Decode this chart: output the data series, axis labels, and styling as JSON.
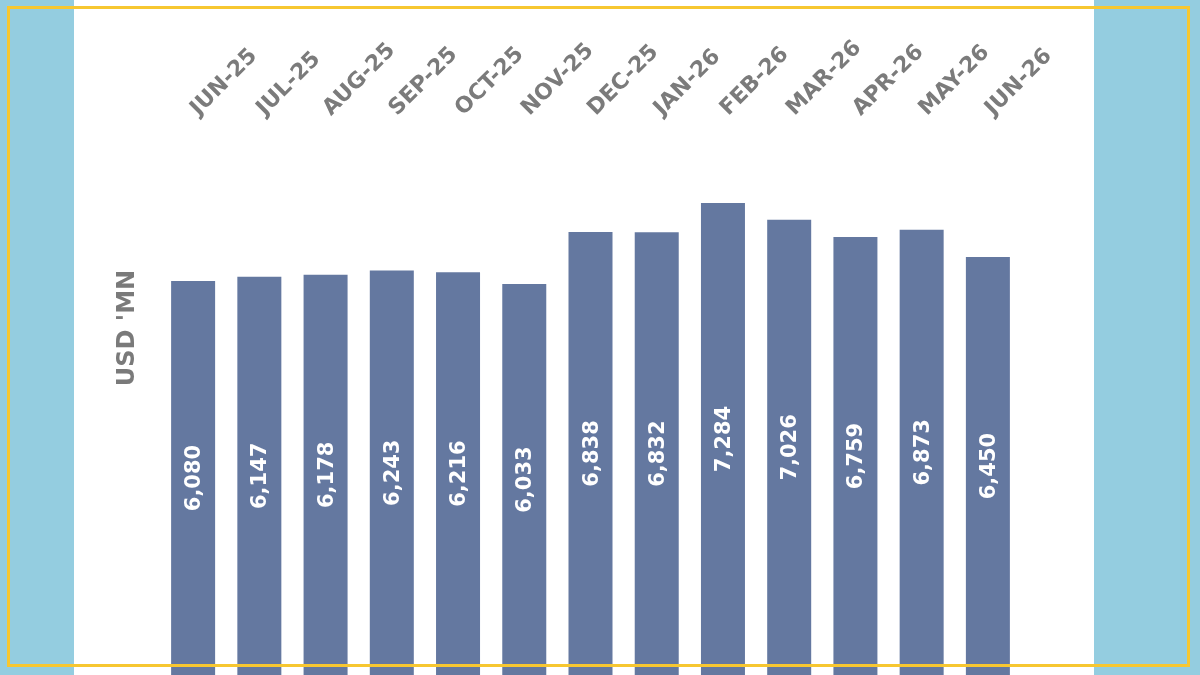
{
  "chart_data": {
    "type": "bar",
    "ylabel": "USD 'MN",
    "categories": [
      "JUN-25",
      "JUL-25",
      "AUG-25",
      "SEP-25",
      "OCT-25",
      "NOV-25",
      "DEC-25",
      "JAN-26",
      "FEB-26",
      "MAR-26",
      "APR-26",
      "MAY-26",
      "JUN-26"
    ],
    "values": [
      6080,
      6147,
      6178,
      6243,
      6216,
      6033,
      6838,
      6832,
      7284,
      7026,
      6759,
      6873,
      6450
    ],
    "value_labels": [
      "6,080",
      "6,147",
      "6,178",
      "6,243",
      "6,216",
      "6,033",
      "6,838",
      "6,832",
      "7,284",
      "7,026",
      "6,759",
      "6,873",
      "6,450"
    ],
    "color": "#6478a0",
    "tick_labels": "x"
  }
}
